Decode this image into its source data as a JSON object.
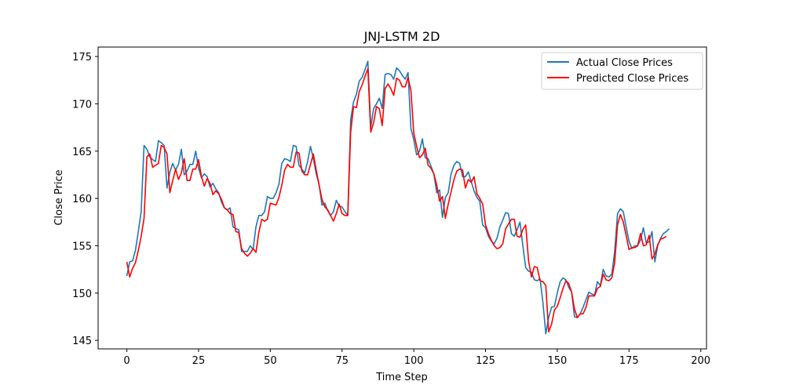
{
  "chart_data": {
    "type": "line",
    "title": "JNJ-LSTM 2D",
    "xlabel": "Time Step",
    "ylabel": "Close Price",
    "xlim": [
      -10,
      202
    ],
    "ylim": [
      144.1,
      176
    ],
    "xticks": [
      0,
      25,
      50,
      75,
      100,
      125,
      150,
      175,
      200
    ],
    "yticks": [
      145,
      150,
      155,
      160,
      165,
      170,
      175
    ],
    "grid": false,
    "legend_position": "top-right",
    "series": [
      {
        "name": "Actual Close Prices",
        "color": "#1f77b4",
        "values": [
          151.8,
          153.3,
          153.4,
          154.5,
          156.5,
          158.6,
          165.6,
          165.2,
          164.4,
          164.1,
          163.9,
          166.1,
          165.9,
          165.6,
          161.1,
          162.8,
          163.7,
          163.0,
          163.6,
          165.2,
          162.5,
          162.9,
          163.6,
          163.6,
          165.0,
          163.2,
          162.2,
          162.6,
          162.3,
          161.2,
          161.6,
          161.0,
          160.6,
          159.6,
          159.0,
          158.8,
          159.0,
          157.0,
          156.8,
          156.7,
          154.4,
          154.4,
          154.4,
          155.0,
          154.6,
          157.0,
          158.2,
          158.2,
          158.6,
          160.2,
          160.0,
          160.0,
          160.6,
          161.5,
          163.7,
          164.2,
          164.1,
          163.9,
          165.6,
          165.5,
          163.5,
          163.1,
          162.7,
          163.9,
          165.5,
          164.2,
          162.6,
          161.5,
          159.3,
          159.5,
          158.7,
          158.2,
          158.6,
          159.8,
          159.2,
          159.1,
          158.6,
          158.2,
          168.3,
          170.2,
          171.0,
          172.4,
          172.8,
          173.6,
          174.5,
          167.5,
          169.5,
          170.0,
          170.6,
          169.5,
          173.1,
          173.2,
          173.1,
          172.6,
          173.8,
          173.5,
          173.0,
          172.6,
          173.3,
          167.4,
          166.2,
          164.6,
          165.0,
          166.3,
          164.3,
          164.2,
          163.4,
          162.6,
          160.6,
          160.9,
          158.0,
          160.1,
          160.6,
          162.6,
          163.5,
          163.9,
          163.7,
          162.3,
          162.3,
          162.8,
          161.8,
          160.8,
          160.1,
          159.7,
          157.2,
          156.9,
          156.0,
          155.5,
          155.2,
          155.8,
          157.0,
          157.7,
          158.5,
          158.4,
          156.3,
          156.0,
          156.7,
          157.5,
          155.0,
          152.7,
          152.3,
          152.2,
          151.4,
          151.3,
          151.5,
          149.0,
          145.7,
          147.4,
          148.5,
          148.6,
          150.0,
          151.2,
          151.6,
          151.4,
          150.6,
          150.1,
          147.5,
          147.4,
          147.8,
          148.5,
          149.3,
          150.1,
          149.9,
          149.8,
          151.2,
          150.8,
          152.5,
          151.8,
          151.7,
          152.0,
          154.4,
          158.4,
          158.9,
          158.6,
          157.0,
          155.5,
          154.7,
          155.0,
          155.0,
          155.6,
          156.9,
          155.3,
          155.4,
          156.5,
          153.3,
          155.0,
          155.8,
          156.3,
          156.5,
          156.8
        ]
      },
      {
        "name": "Predicted Close Prices",
        "color": "#ff0000",
        "values": [
          153.3,
          151.7,
          152.6,
          153.2,
          154.5,
          156.0,
          157.9,
          164.4,
          164.7,
          163.3,
          163.5,
          163.7,
          165.6,
          165.4,
          164.7,
          160.6,
          161.9,
          163.1,
          162.0,
          162.7,
          164.2,
          161.9,
          161.9,
          163.1,
          163.1,
          164.1,
          162.3,
          161.3,
          162.1,
          161.6,
          160.4,
          160.8,
          160.5,
          159.9,
          159.0,
          158.8,
          158.4,
          158.3,
          156.5,
          156.4,
          154.7,
          154.2,
          153.9,
          154.2,
          154.7,
          154.3,
          156.4,
          157.8,
          157.6,
          157.8,
          159.5,
          159.4,
          159.3,
          160.1,
          161.4,
          163.0,
          163.6,
          163.3,
          163.3,
          164.9,
          164.8,
          162.9,
          162.5,
          162.5,
          163.6,
          164.7,
          163.0,
          161.4,
          159.9,
          159.1,
          158.8,
          158.2,
          157.6,
          158.4,
          159.4,
          158.4,
          158.2,
          158.2,
          167.0,
          169.7,
          169.6,
          171.3,
          172.0,
          172.9,
          173.7,
          167.0,
          168.0,
          169.7,
          169.5,
          167.7,
          171.6,
          172.1,
          171.6,
          170.9,
          172.7,
          172.5,
          171.8,
          171.8,
          172.8,
          171.4,
          166.9,
          165.5,
          164.3,
          164.6,
          165.3,
          163.5,
          163.2,
          162.6,
          161.4,
          159.7,
          160.2,
          157.9,
          159.4,
          160.7,
          162.0,
          162.9,
          163.1,
          163.0,
          161.1,
          162.0,
          161.7,
          162.3,
          160.5,
          160.0,
          159.4,
          157.2,
          156.3,
          155.6,
          155.0,
          154.7,
          154.8,
          155.2,
          156.8,
          157.3,
          157.8,
          157.8,
          156.0,
          155.9,
          156.7,
          157.2,
          153.4,
          151.7,
          152.8,
          152.7,
          151.3,
          151.2,
          150.8,
          145.9,
          146.7,
          148.2,
          148.6,
          149.5,
          150.5,
          151.3,
          151.0,
          150.1,
          148.3,
          147.4,
          147.8,
          147.8,
          148.5,
          149.7,
          149.7,
          149.7,
          150.5,
          150.7,
          152.0,
          151.4,
          151.3,
          151.6,
          153.2,
          157.2,
          158.3,
          157.5,
          156.1,
          154.6,
          154.8,
          154.8,
          155.0,
          156.3,
          155.0,
          155.1,
          156.1,
          153.6,
          154.1,
          155.1,
          155.7,
          155.8,
          156.0
        ]
      }
    ]
  }
}
